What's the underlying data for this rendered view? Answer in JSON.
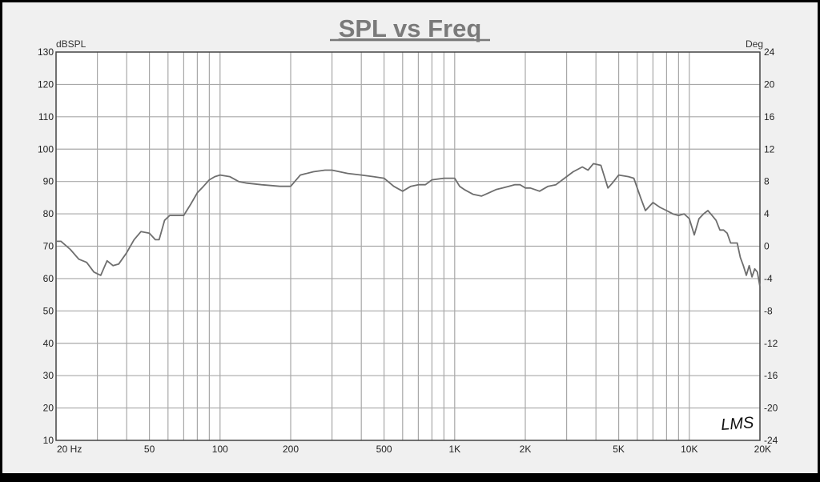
{
  "chart_data": {
    "type": "line",
    "title": "SPL vs Freq",
    "ylabel_left": "dBSPL",
    "ylabel_right": "Deg",
    "xscale": "log",
    "xlim": [
      20,
      20000
    ],
    "ylim": [
      10,
      130
    ],
    "ylim_right": [
      -24,
      24
    ],
    "grid": true,
    "x_tick_labels": [
      {
        "value": 20,
        "label": "20  Hz"
      },
      {
        "value": 50,
        "label": "50"
      },
      {
        "value": 100,
        "label": "100"
      },
      {
        "value": 200,
        "label": "200"
      },
      {
        "value": 500,
        "label": "500"
      },
      {
        "value": 1000,
        "label": "1K"
      },
      {
        "value": 2000,
        "label": "2K"
      },
      {
        "value": 5000,
        "label": "5K"
      },
      {
        "value": 10000,
        "label": "10K"
      },
      {
        "value": 20000,
        "label": "20K"
      }
    ],
    "y_ticks_left": [
      130,
      120,
      110,
      100,
      90,
      80,
      70,
      60,
      50,
      40,
      30,
      20,
      10
    ],
    "y_ticks_right": [
      "24",
      "20",
      "16",
      "12",
      "8",
      "4",
      "0",
      "-4",
      "-8",
      "-12",
      "-16",
      "-20",
      "-24"
    ],
    "watermark": "LMS",
    "series": [
      {
        "color": "#6e6e6e",
        "x": [
          20,
          21,
          23,
          25,
          27,
          29,
          31,
          33,
          35,
          37,
          40,
          43,
          46,
          50,
          53,
          55,
          58,
          61,
          63,
          66,
          70,
          75,
          80,
          85,
          90,
          95,
          100,
          110,
          120,
          130,
          150,
          180,
          200,
          220,
          250,
          280,
          300,
          350,
          400,
          450,
          500,
          550,
          600,
          650,
          700,
          750,
          800,
          900,
          1000,
          1050,
          1100,
          1200,
          1300,
          1400,
          1500,
          1600,
          1700,
          1800,
          1900,
          2000,
          2100,
          2200,
          2300,
          2500,
          2700,
          3000,
          3200,
          3500,
          3700,
          3900,
          4200,
          4500,
          4700,
          5000,
          5500,
          5800,
          6200,
          6500,
          7000,
          7500,
          8000,
          8500,
          9000,
          9500,
          10000,
          10500,
          11000,
          11500,
          12000,
          12500,
          13000,
          13500,
          14000,
          14500,
          15000,
          15500,
          16000,
          16500,
          17000,
          17500,
          18000,
          18500,
          19000,
          19500,
          20000
        ],
        "y": [
          71.5,
          71.5,
          69,
          66,
          65,
          62,
          61,
          65.5,
          64,
          64.5,
          68,
          72,
          74.5,
          74,
          72,
          72,
          78,
          79.5,
          79.5,
          79.5,
          79.5,
          83,
          86.5,
          88.5,
          90.5,
          91.5,
          92,
          91.5,
          90,
          89.5,
          89,
          88.5,
          88.5,
          92,
          93,
          93.5,
          93.5,
          92.5,
          92,
          91.5,
          91,
          88.5,
          87,
          88.5,
          89,
          89,
          90.5,
          91,
          91,
          88.5,
          87.5,
          86,
          85.5,
          86.5,
          87.5,
          88,
          88.5,
          89,
          89,
          88,
          88,
          87.5,
          87,
          88.5,
          89,
          91.5,
          93,
          94.5,
          93.5,
          95.5,
          95,
          88,
          89.5,
          92,
          91.5,
          91,
          85,
          81,
          83.5,
          82,
          81,
          80,
          79.5,
          80,
          78.5,
          73.5,
          78.5,
          80,
          81,
          79.5,
          78,
          75,
          75,
          74,
          71,
          71,
          71,
          66.5,
          64,
          61,
          64,
          60.5,
          63,
          62,
          57.5
        ]
      }
    ]
  }
}
